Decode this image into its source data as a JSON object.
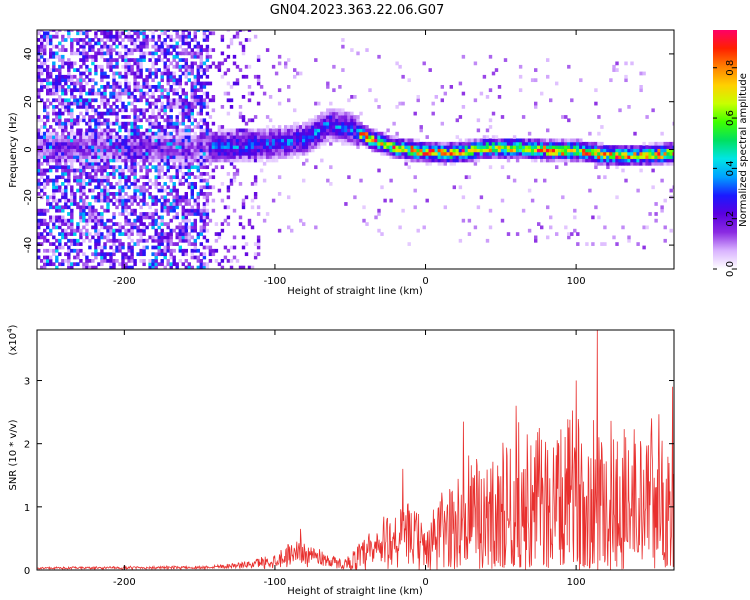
{
  "title": "GN04.2023.363.22.06.G07",
  "colors": {
    "axis": "#000000",
    "snr_line": "#e8302e",
    "background": "#ffffff"
  },
  "chart_data": [
    {
      "type": "heatmap",
      "name": "spectrogram",
      "xlabel": "Height of straight line (km)",
      "ylabel": "Frequency (Hz)",
      "xlim": [
        -258,
        165
      ],
      "ylim": [
        -50,
        50
      ],
      "xticks": [
        "-200",
        "-100",
        "0",
        "100"
      ],
      "yticks": [
        "-40",
        "-20",
        "0",
        "20",
        "40"
      ],
      "colorbar": {
        "label": "Normalized spectral amplitude",
        "range": [
          0,
          0.95
        ],
        "ticks": [
          "0.0",
          "0.2",
          "0.4",
          "0.6",
          "0.8"
        ],
        "colormap": [
          "#ffffff",
          "#d9b3ff",
          "#8a2be2",
          "#5b00e0",
          "#1a1aff",
          "#00a0ff",
          "#00e5e5",
          "#00e060",
          "#40ff00",
          "#c8ff00",
          "#ffd000",
          "#ff8000",
          "#ff2000",
          "#ff0066"
        ]
      },
      "ridge": [
        {
          "x": -150,
          "freq": 0
        },
        {
          "x": -120,
          "freq": 1
        },
        {
          "x": -100,
          "freq": 2
        },
        {
          "x": -80,
          "freq": 4
        },
        {
          "x": -65,
          "freq": 10
        },
        {
          "x": -50,
          "freq": 8
        },
        {
          "x": -35,
          "freq": 3
        },
        {
          "x": -20,
          "freq": 0
        },
        {
          "x": 0,
          "freq": -2
        },
        {
          "x": 20,
          "freq": -2
        },
        {
          "x": 40,
          "freq": 0
        },
        {
          "x": 60,
          "freq": 0
        },
        {
          "x": 80,
          "freq": -1
        },
        {
          "x": 100,
          "freq": -1
        },
        {
          "x": 120,
          "freq": -3
        },
        {
          "x": 140,
          "freq": -3
        },
        {
          "x": 165,
          "freq": -2
        }
      ]
    },
    {
      "type": "line",
      "name": "snr",
      "xlabel": "Height of straight line (km)",
      "ylabel": "SNR (10 * v/v)",
      "yscale_label": "(x10",
      "yscale_exp": "4",
      "xlim": [
        -258,
        165
      ],
      "ylim": [
        0,
        3.8
      ],
      "xticks": [
        "-200",
        "-100",
        "0",
        "100"
      ],
      "yticks": [
        "0",
        "1",
        "2",
        "3"
      ],
      "envelope": [
        {
          "x": -258,
          "base": 0.03,
          "amp": 0.02
        },
        {
          "x": -150,
          "base": 0.04,
          "amp": 0.03
        },
        {
          "x": -120,
          "base": 0.08,
          "amp": 0.06
        },
        {
          "x": -100,
          "base": 0.15,
          "amp": 0.15
        },
        {
          "x": -85,
          "base": 0.3,
          "amp": 0.25
        },
        {
          "x": -70,
          "base": 0.2,
          "amp": 0.18
        },
        {
          "x": -55,
          "base": 0.08,
          "amp": 0.08
        },
        {
          "x": -40,
          "base": 0.2,
          "amp": 0.4
        },
        {
          "x": -25,
          "base": 0.45,
          "amp": 0.6
        },
        {
          "x": -10,
          "base": 0.55,
          "amp": 0.6
        },
        {
          "x": 0,
          "base": 0.35,
          "amp": 0.5
        },
        {
          "x": 10,
          "base": 0.6,
          "amp": 0.8
        },
        {
          "x": 30,
          "base": 0.8,
          "amp": 1.3
        },
        {
          "x": 60,
          "base": 0.9,
          "amp": 1.5
        },
        {
          "x": 90,
          "base": 1.0,
          "amp": 1.6
        },
        {
          "x": 115,
          "base": 1.1,
          "amp": 2.0
        },
        {
          "x": 140,
          "base": 1.0,
          "amp": 1.5
        },
        {
          "x": 165,
          "base": 1.0,
          "amp": 1.6
        }
      ],
      "peaks": [
        {
          "x": -83,
          "y": 0.65
        },
        {
          "x": -15,
          "y": 1.6
        },
        {
          "x": 25,
          "y": 2.35
        },
        {
          "x": 60,
          "y": 2.6
        },
        {
          "x": 100,
          "y": 3.0
        },
        {
          "x": 114,
          "y": 3.8
        },
        {
          "x": 150,
          "y": 2.4
        },
        {
          "x": 164,
          "y": 2.9
        }
      ]
    }
  ]
}
